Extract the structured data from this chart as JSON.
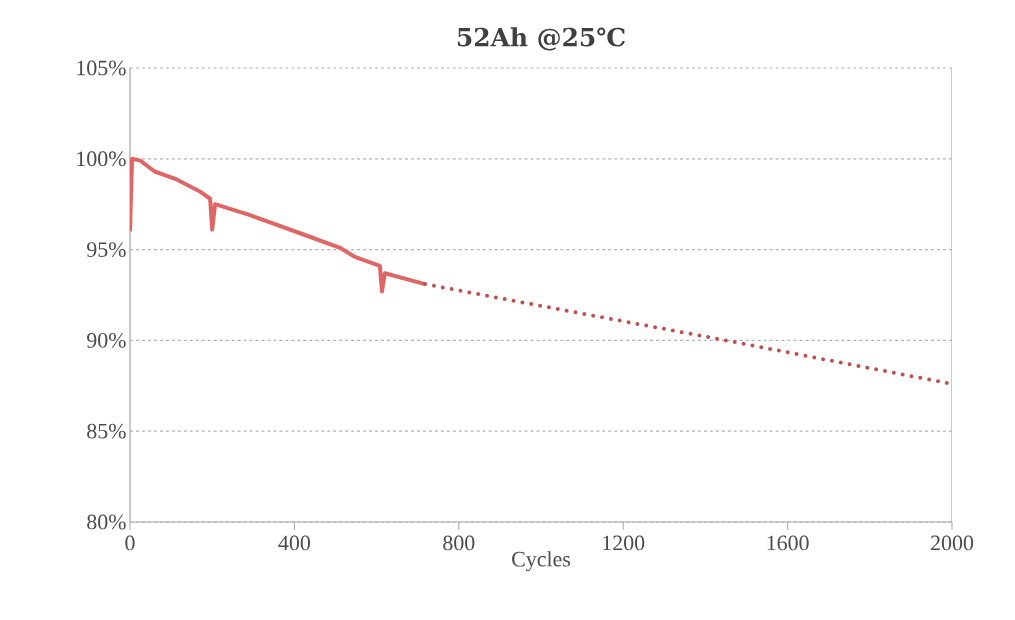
{
  "chart_data": {
    "type": "line",
    "title": "52Ah @25℃",
    "xlabel": "Cycles",
    "xlim": [
      0,
      2000
    ],
    "xticks": [
      0,
      400,
      800,
      1200,
      1600,
      2000
    ],
    "ylim": [
      80,
      105
    ],
    "yticks": [
      {
        "value": 80,
        "label": "80%"
      },
      {
        "value": 85,
        "label": "85%"
      },
      {
        "value": 90,
        "label": "90%"
      },
      {
        "value": 95,
        "label": "95%"
      },
      {
        "value": 100,
        "label": "100%"
      },
      {
        "value": 105,
        "label": "105%"
      }
    ],
    "grid": "y",
    "marker": "none",
    "series": [
      {
        "color": "#e06666",
        "line_style": "solid",
        "x": [
          0,
          5,
          25,
          60,
          110,
          170,
          195,
          200,
          207,
          292,
          414,
          511,
          547,
          608,
          613,
          620,
          718
        ],
        "values": [
          96.0,
          100.0,
          99.9,
          99.3,
          98.9,
          98.2,
          97.8,
          96.1,
          97.5,
          96.9,
          95.9,
          95.1,
          94.6,
          94.1,
          92.7,
          93.7,
          93.1
        ]
      },
      {
        "color": "#c0504d",
        "line_style": "dotted",
        "x": [
          718,
          1000,
          1450,
          2000
        ],
        "values": [
          93.1,
          91.9,
          90.0,
          87.6
        ]
      }
    ]
  }
}
